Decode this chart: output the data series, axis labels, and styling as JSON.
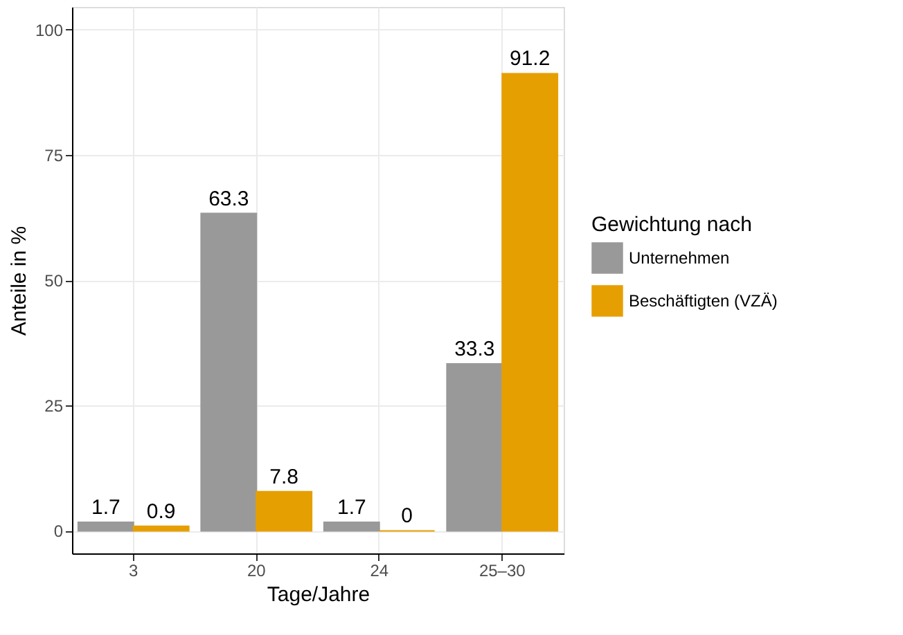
{
  "chart_data": {
    "type": "bar",
    "xlabel": "Tage/Jahre",
    "ylabel": "Anteile in %",
    "legend_title": "Gewichtung nach",
    "categories": [
      "3",
      "20",
      "24",
      "25–30"
    ],
    "series": [
      {
        "name": "Unternehmen",
        "color": "#999999",
        "values": [
          1.7,
          63.3,
          1.7,
          33.3
        ]
      },
      {
        "name": "Beschäftigten (VZÄ)",
        "color": "#e69f00",
        "values": [
          0.9,
          7.8,
          0,
          91.2
        ]
      }
    ],
    "ylim": [
      -4.5,
      104.5
    ],
    "yticks": [
      0,
      25,
      50,
      75,
      100
    ],
    "grid": true,
    "legend": "right",
    "data_labels": true
  }
}
